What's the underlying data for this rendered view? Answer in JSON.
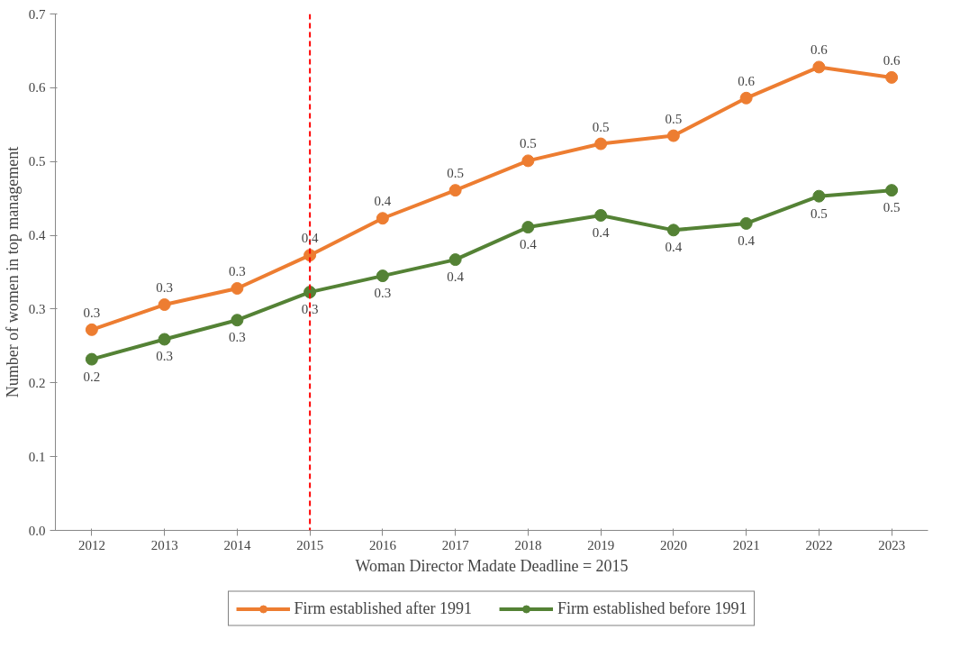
{
  "chart_data": {
    "type": "line",
    "xlabel": "Woman Director Madate Deadline = 2015",
    "ylabel": "Number of women in top management",
    "x": [
      2012,
      2013,
      2014,
      2015,
      2016,
      2017,
      2018,
      2019,
      2020,
      2021,
      2022,
      2023
    ],
    "xlim": [
      2011.5,
      2023.5
    ],
    "xticks": [
      2012,
      2013,
      2014,
      2015,
      2016,
      2017,
      2018,
      2019,
      2020,
      2021,
      2022,
      2023
    ],
    "ylim": [
      0,
      0.7
    ],
    "yticks": [
      {
        "value": 0,
        "label": "0.0"
      },
      0.1,
      0.2,
      0.3,
      0.4,
      0.5,
      0.6,
      0.7
    ],
    "grid": false,
    "legend": "bottom",
    "marker": "circle",
    "line_style": "solid",
    "ref_lines": [
      {
        "axis": "x",
        "value": 2015,
        "color": "#ff0000",
        "line_style": "dashed"
      }
    ],
    "series": [
      {
        "name": "Firm established after 1991",
        "color": "#ed7d31",
        "values": [
          0.272,
          0.306,
          0.328,
          0.373,
          0.423,
          0.461,
          0.501,
          0.524,
          0.535,
          0.586,
          0.628,
          0.614
        ],
        "value_labels": [
          "0.3",
          "0.3",
          "0.3",
          "0.4",
          "0.4",
          "0.5",
          "0.5",
          "0.5",
          "0.5",
          "0.6",
          "0.6",
          "0.6"
        ]
      },
      {
        "name": "Firm established before 1991",
        "color": "#548235",
        "values": [
          0.232,
          0.259,
          0.285,
          0.323,
          0.345,
          0.367,
          0.411,
          0.427,
          0.407,
          0.416,
          0.453,
          0.461
        ],
        "value_labels": [
          "0.2",
          "0.3",
          "0.3",
          "0.3",
          "0.3",
          "0.4",
          "0.4",
          "0.4",
          "0.4",
          "0.4",
          "0.5",
          "0.5"
        ]
      }
    ]
  }
}
